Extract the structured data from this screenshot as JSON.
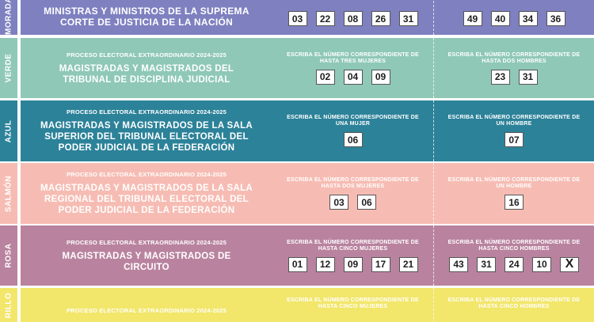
{
  "process_label": "PROCESO ELECTORAL EXTRAORDINARIO 2024-2025",
  "rows": [
    {
      "tab": "MORADA",
      "title": "MINISTRAS Y MINISTROS DE LA SUPREMA CORTE DE JUSTICIA DE LA NACIÓN",
      "color": "#7e80c0",
      "women_numbers": [
        "03",
        "22",
        "08",
        "26",
        "31"
      ],
      "men_numbers": [
        "49",
        "40",
        "34",
        "36"
      ]
    },
    {
      "tab": "VERDE",
      "title": "MAGISTRADAS Y MAGISTRADOS DEL TRIBUNAL DE DISCIPLINA JUDICIAL",
      "color": "#8fc8b7",
      "women_instruction": "ESCRIBA EL NÚMERO CORRESPONDIENTE DE HASTA TRES MUJERES",
      "men_instruction": "ESCRIBA EL NÚMERO CORRESPONDIENTE DE HASTA DOS HOMBRES",
      "women_numbers": [
        "02",
        "04",
        "09"
      ],
      "men_numbers": [
        "23",
        "31"
      ]
    },
    {
      "tab": "AZUL",
      "title": "MAGISTRADAS Y MAGISTRADOS DE LA SALA SUPERIOR DEL TRIBUNAL ELECTORAL DEL PODER JUDICIAL DE LA FEDERACIÓN",
      "color": "#2c8299",
      "women_instruction": "ESCRIBA EL NÚMERO CORRESPONDIENTE DE UNA MUJER",
      "men_instruction": "ESCRIBA EL NÚMERO CORRESPONDIENTE DE UN HOMBRE",
      "women_numbers": [
        "06"
      ],
      "men_numbers": [
        "07"
      ]
    },
    {
      "tab": "SALMÓN",
      "title": "MAGISTRADAS Y MAGISTRADOS DE LA SALA REGIONAL DEL TRIBUNAL ELECTORAL DEL PODER JUDICIAL DE LA FEDERACIÓN",
      "color": "#f6bcb3",
      "women_instruction": "ESCRIBA EL NÚMERO CORRESPONDIENTE DE HASTA DOS MUJERES",
      "men_instruction": "ESCRIBA EL NÚMERO CORRESPONDIENTE DE UN HOMBRE",
      "women_numbers": [
        "03",
        "06"
      ],
      "men_numbers": [
        "16"
      ]
    },
    {
      "tab": "ROSA",
      "title": "MAGISTRADAS Y MAGISTRADOS DE CIRCUITO",
      "color": "#b9839f",
      "women_instruction": "ESCRIBA EL NÚMERO CORRESPONDIENTE DE HASTA CINCO MUJERES",
      "men_instruction": "ESCRIBA EL NÚMERO CORRESPONDIENTE DE HASTA CINCO HOMBRES",
      "women_numbers": [
        "01",
        "12",
        "09",
        "17",
        "21"
      ],
      "men_numbers": [
        "43",
        "31",
        "24",
        "10",
        "X"
      ]
    },
    {
      "tab": "RILLO",
      "title": "",
      "color": "#f2e66b",
      "women_instruction": "ESCRIBA EL NÚMERO CORRESPONDIENTE DE HASTA CINCO MUJERES",
      "men_instruction": "ESCRIBA EL NÚMERO CORRESPONDIENTE DE HASTA CINCO HOMBRES"
    }
  ]
}
